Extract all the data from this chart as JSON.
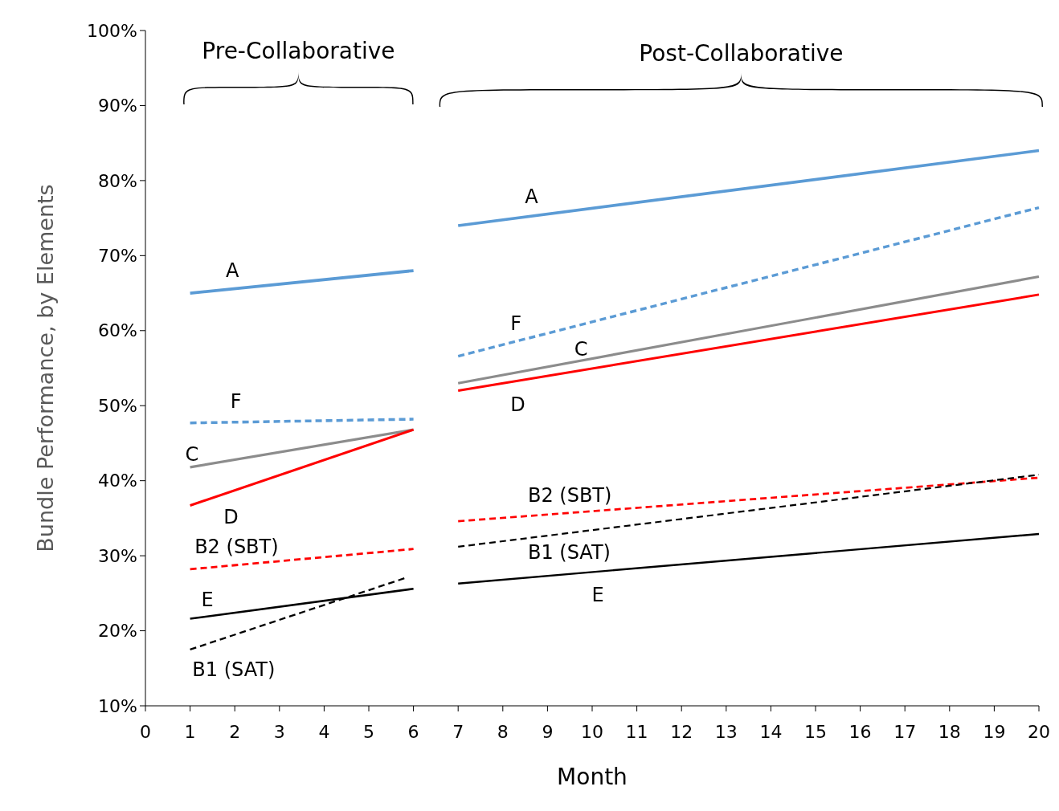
{
  "chart_data": {
    "type": "line",
    "xlabel": "Month",
    "ylabel": "Bundle Performance, by Elements",
    "xlim": [
      0,
      20
    ],
    "xticks": [
      0,
      1,
      2,
      3,
      4,
      5,
      6,
      7,
      8,
      9,
      10,
      11,
      12,
      13,
      14,
      15,
      16,
      17,
      18,
      19,
      20
    ],
    "ylim": [
      10,
      100
    ],
    "yticks": [
      {
        "value": 10,
        "label": "10%"
      },
      {
        "value": 20,
        "label": "20%"
      },
      {
        "value": 30,
        "label": "30%"
      },
      {
        "value": 40,
        "label": "40%"
      },
      {
        "value": 50,
        "label": "50%"
      },
      {
        "value": 60,
        "label": "60%"
      },
      {
        "value": 70,
        "label": "70%"
      },
      {
        "value": 80,
        "label": "80%"
      },
      {
        "value": 90,
        "label": "90%"
      },
      {
        "value": 100,
        "label": "100%"
      }
    ],
    "grid": false,
    "marker": "none",
    "series": [
      {
        "name": "A",
        "color": "#5b9bd5",
        "line_style": "solid",
        "x": [
          1,
          6
        ],
        "values": [
          65,
          68
        ]
      },
      {
        "name": "A",
        "color": "#5b9bd5",
        "line_style": "solid",
        "x": [
          7,
          20
        ],
        "values": [
          74,
          84
        ]
      },
      {
        "name": "F",
        "color": "#5b9bd5",
        "line_style": "dashed",
        "x": [
          1,
          6
        ],
        "values": [
          47.7,
          48.2
        ]
      },
      {
        "name": "F",
        "color": "#5b9bd5",
        "line_style": "dashed",
        "x": [
          7,
          20
        ],
        "values": [
          56.6,
          76.4
        ]
      },
      {
        "name": "C",
        "color": "#8c8c8c",
        "line_style": "solid",
        "x": [
          1,
          6
        ],
        "values": [
          41.8,
          46.8
        ]
      },
      {
        "name": "C",
        "color": "#8c8c8c",
        "line_style": "solid",
        "x": [
          7,
          20
        ],
        "values": [
          53,
          67.2
        ]
      },
      {
        "name": "D",
        "color": "#ff0000",
        "line_style": "solid",
        "x": [
          1,
          6
        ],
        "values": [
          36.7,
          46.8
        ]
      },
      {
        "name": "D",
        "color": "#ff0000",
        "line_style": "solid",
        "x": [
          7,
          20
        ],
        "values": [
          52,
          64.8
        ]
      },
      {
        "name": "B2 (SBT)",
        "color": "#ff0000",
        "line_style": "dashed",
        "x": [
          1,
          6
        ],
        "values": [
          28.2,
          30.9
        ]
      },
      {
        "name": "B2 (SBT)",
        "color": "#ff0000",
        "line_style": "dashed",
        "x": [
          7,
          20
        ],
        "values": [
          34.6,
          40.4
        ]
      },
      {
        "name": "E",
        "color": "#000000",
        "line_style": "solid",
        "x": [
          1,
          6
        ],
        "values": [
          21.6,
          25.6
        ]
      },
      {
        "name": "E",
        "color": "#000000",
        "line_style": "solid",
        "x": [
          7,
          20
        ],
        "values": [
          26.3,
          32.9
        ]
      },
      {
        "name": "B1 (SAT)",
        "color": "#000000",
        "line_style": "dashed",
        "x": [
          1,
          5.85
        ],
        "values": [
          17.5,
          27.1
        ]
      },
      {
        "name": "B1 (SAT)",
        "color": "#000000",
        "line_style": "dashed",
        "x": [
          7,
          20
        ],
        "values": [
          31.2,
          40.8
        ]
      }
    ],
    "annotations": [
      "Pre-Collaborative",
      "Post-Collaborative"
    ]
  }
}
